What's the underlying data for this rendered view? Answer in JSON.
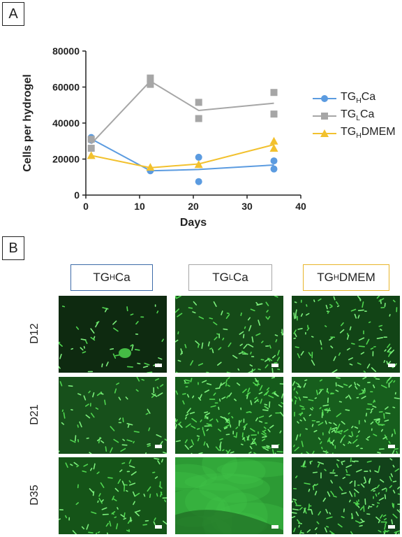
{
  "panel_labels": {
    "a": "A",
    "b": "B"
  },
  "chart_data": {
    "type": "scatter",
    "xlabel": "Days",
    "ylabel": "Cells per hydrogel",
    "xlim": [
      0,
      40
    ],
    "ylim": [
      0,
      80000
    ],
    "xticks": [
      0,
      10,
      20,
      30,
      40
    ],
    "yticks": [
      0,
      20000,
      40000,
      60000,
      80000
    ],
    "legend_position": "right",
    "series": [
      {
        "name_main": "TG",
        "name_sub": "H",
        "name_rest": "Ca",
        "color": "#5b9be0",
        "marker": "circle",
        "points": [
          [
            1,
            32000
          ],
          [
            1,
            30500
          ],
          [
            12,
            13500
          ],
          [
            21,
            21000
          ],
          [
            21,
            7500
          ],
          [
            35,
            19000
          ],
          [
            35,
            14500
          ]
        ],
        "line": [
          [
            1,
            31200
          ],
          [
            12,
            13500
          ],
          [
            21,
            14200
          ],
          [
            35,
            16700
          ]
        ]
      },
      {
        "name_main": "TG",
        "name_sub": "L",
        "name_rest": "Ca",
        "color": "#a6a6a6",
        "marker": "square",
        "points": [
          [
            1,
            26000
          ],
          [
            1,
            31000
          ],
          [
            12,
            65000
          ],
          [
            12,
            61500
          ],
          [
            21,
            51500
          ],
          [
            21,
            42500
          ],
          [
            35,
            57000
          ],
          [
            35,
            45000
          ]
        ],
        "line": [
          [
            1,
            28500
          ],
          [
            12,
            63300
          ],
          [
            21,
            47000
          ],
          [
            35,
            51000
          ]
        ]
      },
      {
        "name_main": "TG",
        "name_sub": "H",
        "name_rest": "DMEM",
        "color": "#f2c12e",
        "marker": "triangle",
        "points": [
          [
            1,
            22000
          ],
          [
            12,
            15500
          ],
          [
            21,
            17000
          ],
          [
            35,
            30000
          ],
          [
            35,
            26000
          ]
        ],
        "line": [
          [
            1,
            22000
          ],
          [
            12,
            15200
          ],
          [
            21,
            17300
          ],
          [
            35,
            28000
          ]
        ]
      }
    ]
  },
  "micrographs": {
    "columns": [
      {
        "main": "TG",
        "sub": "H",
        "rest": "Ca",
        "border": "#3c6aa8"
      },
      {
        "main": "TG",
        "sub": "L",
        "rest": "Ca",
        "border": "#a6a6a6"
      },
      {
        "main": "TG",
        "sub": "H",
        "rest": "DMEM",
        "border": "#e8b52a"
      }
    ],
    "rows": [
      "D12",
      "D21",
      "D35"
    ]
  }
}
